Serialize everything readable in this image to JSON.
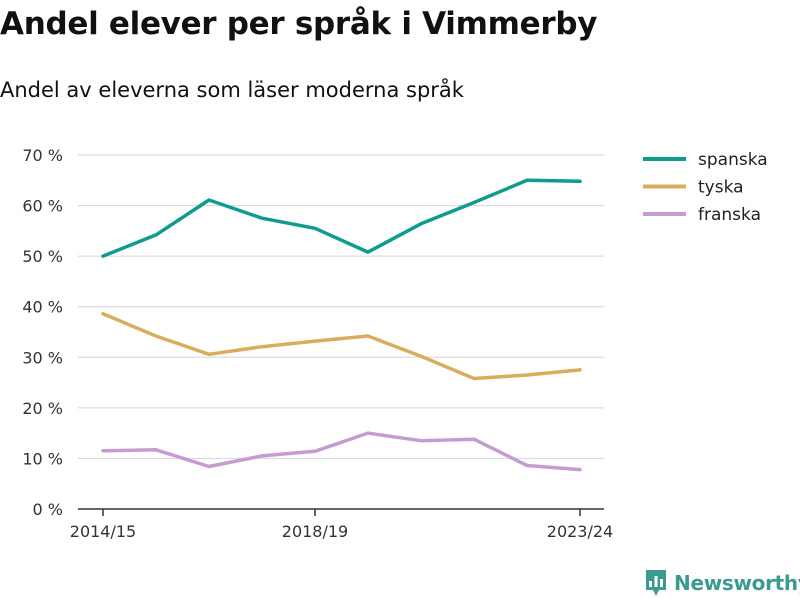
{
  "header": {
    "title": "Andel elever per språk i Vimmerby",
    "subtitle": "Andel av eleverna som läser moderna språk"
  },
  "brand": {
    "name": "Newsworthy",
    "icon": "newsworthy-logo-icon",
    "color": "#3d9a93"
  },
  "chart_data": {
    "type": "line",
    "x": [
      "2014/15",
      "2015/16",
      "2016/17",
      "2017/18",
      "2018/19",
      "2019/20",
      "2020/21",
      "2021/22",
      "2022/23",
      "2023/24"
    ],
    "x_tick_labels": [
      "2014/15",
      "2018/19",
      "2023/24"
    ],
    "ylim": [
      0,
      70
    ],
    "y_ticks": [
      0,
      10,
      20,
      30,
      40,
      50,
      60,
      70
    ],
    "y_tick_labels": [
      "0 %",
      "10 %",
      "20 %",
      "30 %",
      "40 %",
      "50 %",
      "60 %",
      "70 %"
    ],
    "grid": true,
    "legend_position": "top-right",
    "series": [
      {
        "name": "spanska",
        "color": "#0f9c8e",
        "values": [
          50.0,
          54.2,
          61.1,
          57.5,
          55.5,
          50.8,
          56.4,
          60.6,
          65.0,
          64.8
        ]
      },
      {
        "name": "tyska",
        "color": "#d8ad5f",
        "values": [
          38.6,
          34.2,
          30.6,
          32.1,
          33.2,
          34.2,
          30.2,
          25.8,
          26.5,
          27.5
        ]
      },
      {
        "name": "franska",
        "color": "#c49ccf",
        "values": [
          11.5,
          11.7,
          8.4,
          10.5,
          11.4,
          15.0,
          13.5,
          13.8,
          8.6,
          7.8
        ]
      }
    ]
  }
}
